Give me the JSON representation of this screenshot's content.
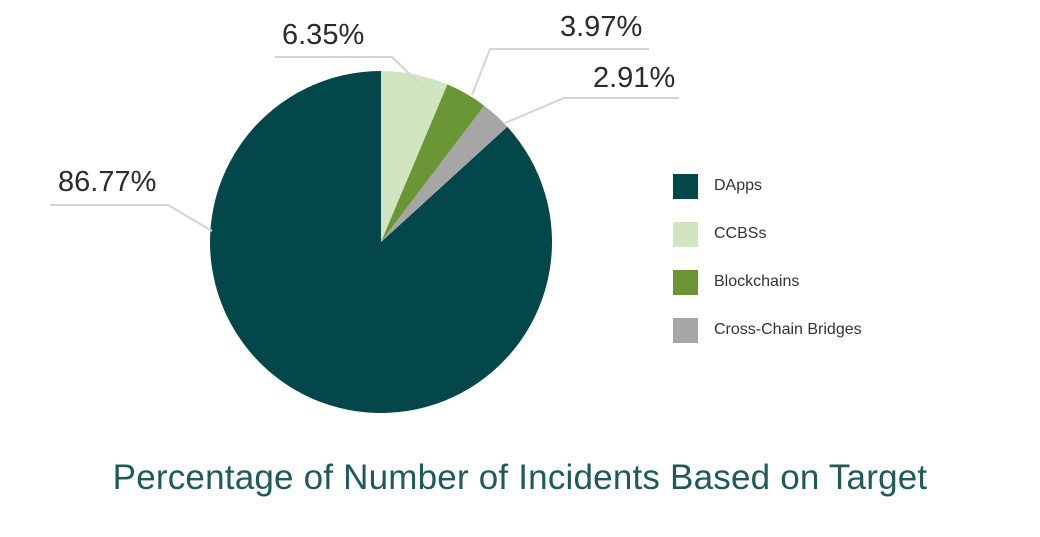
{
  "chart_data": {
    "type": "pie",
    "title": "Percentage of Number of Incidents Based on Target",
    "slices": [
      {
        "name": "DApps",
        "value": 86.77,
        "label": "86.77%",
        "color": "#03474b"
      },
      {
        "name": "CCBSs",
        "value": 6.35,
        "label": "6.35%",
        "color": "#d2e5c1"
      },
      {
        "name": "Blockchains",
        "value": 3.97,
        "label": "3.97%",
        "color": "#6a9636"
      },
      {
        "name": "Cross-Chain Bridges",
        "value": 2.91,
        "label": "2.91%",
        "color": "#a6a6a6"
      }
    ],
    "legend_position": "right"
  }
}
